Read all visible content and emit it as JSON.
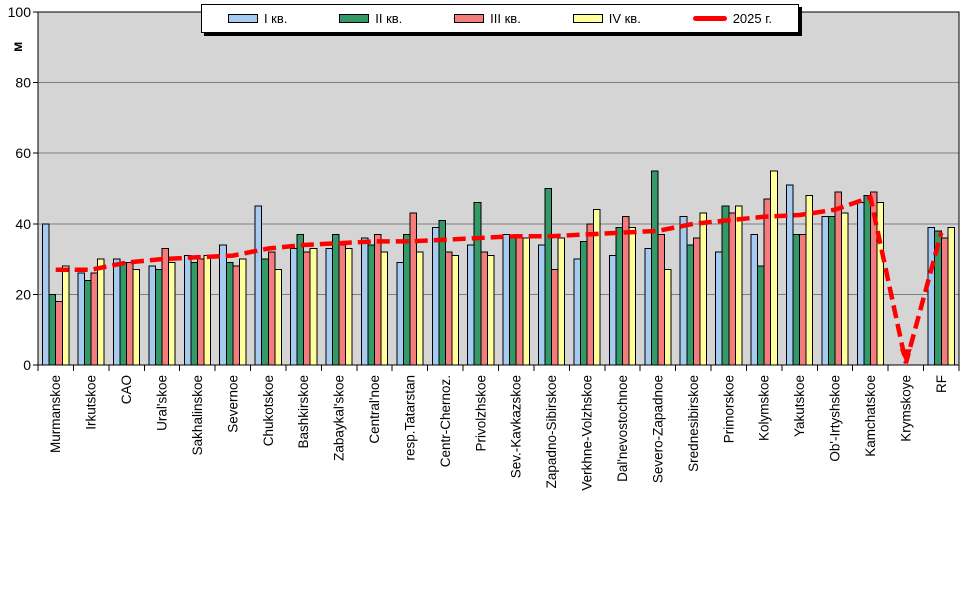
{
  "legend": {
    "items": [
      {
        "label": "I кв.",
        "type": "bar",
        "color": "#A6CAF0"
      },
      {
        "label": "II кв.",
        "type": "bar",
        "color": "#339966"
      },
      {
        "label": "III кв.",
        "type": "bar",
        "color": "#F47C7C"
      },
      {
        "label": "IV кв.",
        "type": "bar",
        "color": "#FFFF9C"
      },
      {
        "label": "2025 г.",
        "type": "line",
        "color": "#FF0000"
      }
    ]
  },
  "y_axis": {
    "unit": "м",
    "ticks": [
      0,
      20,
      40,
      60,
      80,
      100
    ],
    "min": 0,
    "max": 100
  },
  "chart_data": {
    "type": "bar",
    "title": "",
    "xlabel": "",
    "ylabel": "м",
    "ylim": [
      0,
      100
    ],
    "grid": true,
    "legend_position": "top",
    "plot_bg": "#D5D5D5",
    "gridline_color": "#7F7F7F",
    "categories": [
      "Murmanskoe",
      "Irkutskoe",
      "CAO",
      "Ural'skoe",
      "Sakhalinskoe",
      "Severnoe",
      "Chukotskoe",
      "Bashkirskoe",
      "Zabaykal'skoe",
      "Central'noe",
      "resp.Tatarstan",
      "Centr-Chernoz.",
      "Privolzhskoe",
      "Sev.-Kavkazskoe",
      "Zapadno-Sibirskoe",
      "Verkhne-Volzhskoe",
      "Dal'nevostochnoe",
      "Severo-Zapadnoe",
      "Srednesibirskoe",
      "Primorskoe",
      "Kolymskoe",
      "Yakutskoe",
      "Ob'-Irtyshskoe",
      "Kamchatskoe",
      "Krymskoye",
      "RF"
    ],
    "series": [
      {
        "name": "I кв.",
        "color": "#A6CAF0",
        "values": [
          40,
          26,
          30,
          28,
          31,
          34,
          45,
          33,
          33,
          36,
          29,
          39,
          34,
          37,
          34,
          30,
          31,
          33,
          42,
          32,
          37,
          51,
          42,
          46,
          null,
          39
        ]
      },
      {
        "name": "II кв.",
        "color": "#339966",
        "values": [
          20,
          24,
          29,
          27,
          29,
          29,
          30,
          37,
          37,
          34,
          37,
          41,
          46,
          36,
          50,
          35,
          39,
          55,
          34,
          45,
          28,
          37,
          42,
          48,
          null,
          38
        ]
      },
      {
        "name": "III кв.",
        "color": "#F47C7C",
        "values": [
          18,
          26,
          29,
          33,
          30,
          28,
          32,
          32,
          34,
          37,
          43,
          32,
          32,
          36,
          27,
          40,
          42,
          37,
          36,
          43,
          47,
          37,
          49,
          49,
          null,
          36
        ]
      },
      {
        "name": "IV кв.",
        "color": "#FFFF9C",
        "values": [
          28,
          30,
          27,
          29,
          31,
          30,
          27,
          33,
          33,
          32,
          32,
          31,
          31,
          36,
          36,
          44,
          39,
          27,
          43,
          45,
          55,
          48,
          43,
          46,
          null,
          39
        ]
      }
    ],
    "line_series": {
      "name": "2025 г.",
      "color": "#FF0000",
      "values": [
        27,
        27,
        29,
        30,
        30.5,
        31,
        33,
        34,
        34.5,
        35,
        35,
        35.5,
        36,
        36.5,
        36.5,
        37,
        37.5,
        38,
        40,
        41,
        42,
        42.5,
        44,
        47.5,
        0.5,
        37.5
      ]
    }
  }
}
